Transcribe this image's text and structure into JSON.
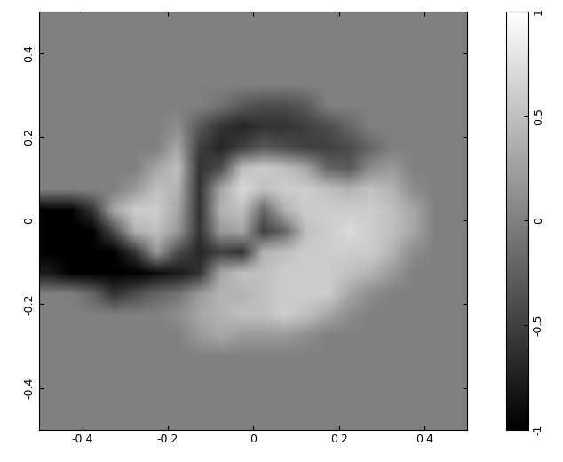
{
  "chart_data": {
    "type": "heatmap",
    "xlim": [
      -0.5,
      0.5
    ],
    "ylim": [
      -0.5,
      0.5
    ],
    "xticks": [
      -0.4,
      -0.2,
      0,
      0.2,
      0.4
    ],
    "yticks": [
      -0.4,
      -0.2,
      0,
      0.2,
      0.4
    ],
    "colorbar_range": [
      -1,
      1
    ],
    "colorbar_ticks": [
      -1,
      -0.5,
      0,
      0.5,
      1
    ],
    "cells": [
      [
        0,
        0,
        0,
        0,
        0,
        0,
        0,
        0,
        0,
        0,
        0,
        0,
        0,
        0,
        0,
        0,
        0,
        0,
        0,
        0
      ],
      [
        0,
        0,
        0,
        0,
        0,
        0,
        0,
        0,
        0,
        0,
        0,
        0,
        0,
        0,
        0,
        0,
        0,
        0,
        0,
        0
      ],
      [
        0,
        0,
        0,
        0,
        0,
        0,
        0,
        0,
        0,
        0,
        0,
        0,
        0,
        0,
        0,
        0,
        0,
        0,
        0,
        0
      ],
      [
        0,
        0,
        0,
        0,
        0,
        0,
        0,
        0,
        0,
        0,
        0,
        0,
        0,
        0,
        0,
        0,
        0,
        0,
        0,
        0
      ],
      [
        0,
        0,
        0,
        0,
        0,
        0,
        0,
        0,
        -0.1,
        -0.3,
        -0.4,
        -0.4,
        -0.3,
        0,
        0,
        0,
        0,
        0,
        0,
        0
      ],
      [
        0,
        0,
        0,
        0,
        0,
        0,
        0.1,
        -0.3,
        -0.6,
        -0.7,
        -0.6,
        -0.6,
        -0.5,
        -0.4,
        -0.2,
        0,
        0,
        0,
        0,
        0
      ],
      [
        0,
        0,
        0,
        0,
        0,
        0,
        0.3,
        -0.5,
        -0.7,
        -0.5,
        -0.3,
        -0.4,
        -0.5,
        -0.5,
        -0.4,
        -0.2,
        0,
        0,
        0,
        0
      ],
      [
        0,
        0,
        0,
        0,
        0,
        0.3,
        0.5,
        -0.6,
        -0.4,
        0.5,
        0.6,
        0.5,
        0.3,
        -0.2,
        -0.3,
        0.1,
        0.2,
        0,
        0,
        0
      ],
      [
        0,
        0,
        0,
        0,
        0.2,
        0.5,
        0.4,
        -0.6,
        0.3,
        0.7,
        0.5,
        0.6,
        0.6,
        0.5,
        0.4,
        0.5,
        0.4,
        0.1,
        0,
        0
      ],
      [
        -1,
        -1,
        -0.6,
        0.3,
        0.6,
        0.6,
        0.3,
        -0.6,
        0.4,
        0.5,
        -0.2,
        0.4,
        0.6,
        0.6,
        0.6,
        0.6,
        0.5,
        0.3,
        0,
        0
      ],
      [
        -1,
        -1,
        -1,
        -0.4,
        0.4,
        0.5,
        0.2,
        -0.6,
        0.2,
        0.3,
        -0.5,
        -0.2,
        0.5,
        0.6,
        0.7,
        0.6,
        0.5,
        0.3,
        0,
        0
      ],
      [
        -1,
        -1,
        -1,
        -1,
        -0.6,
        0.2,
        -0.4,
        -0.7,
        -0.5,
        -0.6,
        0.4,
        0.5,
        0.6,
        0.6,
        0.6,
        0.6,
        0.4,
        0.1,
        0,
        0
      ],
      [
        -0.8,
        -1,
        -1,
        -1,
        -1,
        -0.9,
        -0.8,
        -0.6,
        0.3,
        0.5,
        0.5,
        0.6,
        0.6,
        0.6,
        0.5,
        0.4,
        0.2,
        0,
        0,
        0
      ],
      [
        0,
        0,
        -0.2,
        -0.6,
        -0.4,
        -0.2,
        -0.1,
        0.2,
        0.4,
        0.4,
        0.5,
        0.6,
        0.6,
        0.6,
        0.3,
        0.1,
        0,
        0,
        0,
        0
      ],
      [
        0,
        0,
        0,
        0,
        0,
        0,
        0.1,
        0.3,
        0.4,
        0.5,
        0.5,
        0.6,
        0.5,
        0.3,
        0.1,
        0,
        0,
        0,
        0,
        0
      ],
      [
        0,
        0,
        0,
        0,
        0,
        0,
        0,
        0.2,
        0.3,
        0.2,
        0.2,
        0.2,
        0.1,
        0,
        0,
        0,
        0,
        0,
        0,
        0
      ],
      [
        0,
        0,
        0,
        0,
        0,
        0,
        0,
        0,
        0,
        0,
        0,
        0,
        0,
        0,
        0,
        0,
        0,
        0,
        0,
        0
      ],
      [
        0,
        0,
        0,
        0,
        0,
        0,
        0,
        0,
        0,
        0,
        0,
        0,
        0,
        0,
        0,
        0,
        0,
        0,
        0,
        0
      ],
      [
        0,
        0,
        0,
        0,
        0,
        0,
        0,
        0,
        0,
        0,
        0,
        0,
        0,
        0,
        0,
        0,
        0,
        0,
        0,
        0
      ],
      [
        0,
        0,
        0,
        0,
        0,
        0,
        0,
        0,
        0,
        0,
        0,
        0,
        0,
        0,
        0,
        0,
        0,
        0,
        0,
        0
      ]
    ]
  }
}
